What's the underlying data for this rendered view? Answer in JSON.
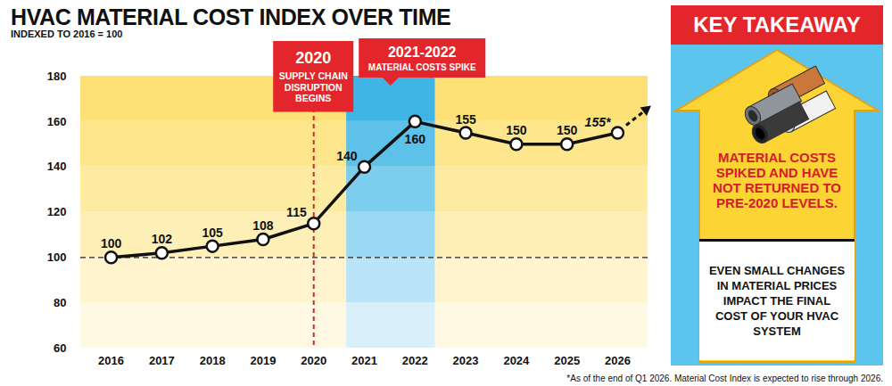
{
  "chart_data": {
    "type": "line",
    "title": "HVAC MATERIAL COST INDEX OVER TIME",
    "subtitle": "INDEXED TO 2016 = 100",
    "categories": [
      "2016",
      "2017",
      "2018",
      "2019",
      "2020",
      "2021",
      "2022",
      "2023",
      "2024",
      "2025",
      "2026"
    ],
    "values": [
      100,
      102,
      105,
      108,
      115,
      140,
      160,
      155,
      150,
      150,
      155
    ],
    "value_labels": [
      "100",
      "102",
      "105",
      "108",
      "115",
      "140",
      "160",
      "155",
      "150",
      "150",
      "155*"
    ],
    "data_labels": true,
    "color": "#111111",
    "marker": "circle",
    "line_style": "solid",
    "ylim": [
      60,
      180
    ],
    "yticks": [
      60,
      80,
      100,
      120,
      140,
      160,
      180
    ],
    "baseline": 100,
    "annotations": [
      {
        "label": "2020",
        "text": "SUPPLY CHAIN DISRUPTION BEGINS",
        "category": "2020"
      },
      {
        "label": "2021-2022",
        "text": "MATERIAL COSTS SPIKE",
        "categories": [
          "2021",
          "2022"
        ]
      }
    ],
    "key_takeaway": {
      "title": "KEY TAKEAWAY",
      "headline": "MATERIAL COSTS SPIKED AND HAVE NOT RETURNED TO PRE-2020 LEVELS.",
      "text": "EVEN SMALL CHANGES IN MATERIAL PRICES IMPACT THE FINAL COST OF YOUR HVAC SYSTEM"
    },
    "footnote": "*As of the end of Q1 2026. Material Cost Index is expected to rise through 2026."
  }
}
